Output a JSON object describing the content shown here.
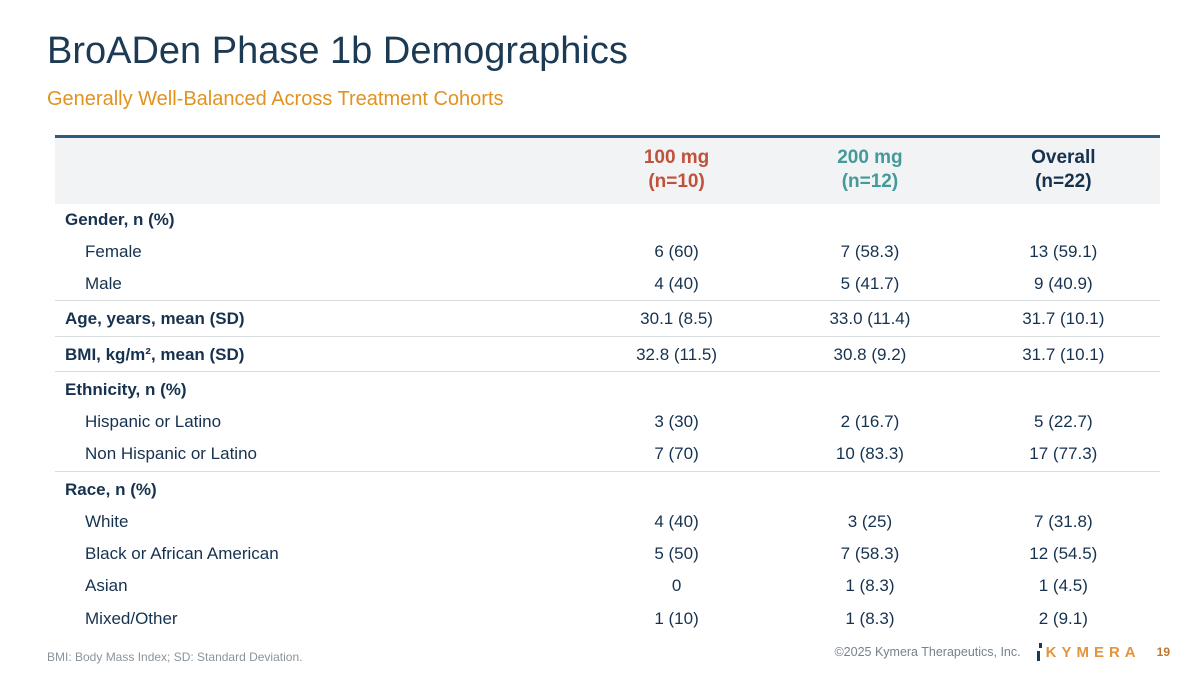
{
  "slide": {
    "title": "BroADen Phase 1b Demographics",
    "subtitle": "Generally Well-Balanced Across Treatment Cohorts"
  },
  "table": {
    "columns": [
      {
        "label": "100 mg",
        "n": "(n=10)"
      },
      {
        "label": "200 mg",
        "n": "(n=12)"
      },
      {
        "label": "Overall",
        "n": "(n=22)"
      }
    ],
    "rows": [
      {
        "label": "Gender, n (%)",
        "type": "section",
        "values": [
          "",
          "",
          ""
        ]
      },
      {
        "label": "Female",
        "type": "sub",
        "values": [
          "6 (60)",
          "7 (58.3)",
          "13 (59.1)"
        ]
      },
      {
        "label": "Male",
        "type": "sub",
        "values": [
          "4 (40)",
          "5 (41.7)",
          "9 (40.9)"
        ]
      },
      {
        "label": "Age, years, mean (SD)",
        "type": "section",
        "values": [
          "30.1 (8.5)",
          "33.0 (11.4)",
          "31.7 (10.1)"
        ]
      },
      {
        "label": "BMI, kg/m², mean (SD)",
        "type": "section",
        "values": [
          "32.8 (11.5)",
          "30.8 (9.2)",
          "31.7 (10.1)"
        ]
      },
      {
        "label": "Ethnicity, n (%)",
        "type": "section",
        "values": [
          "",
          "",
          ""
        ]
      },
      {
        "label": "Hispanic or Latino",
        "type": "sub",
        "values": [
          "3 (30)",
          "2 (16.7)",
          "5 (22.7)"
        ]
      },
      {
        "label": "Non Hispanic or Latino",
        "type": "sub",
        "values": [
          "7 (70)",
          "10 (83.3)",
          "17 (77.3)"
        ]
      },
      {
        "label": "Race, n (%)",
        "type": "section",
        "values": [
          "",
          "",
          ""
        ]
      },
      {
        "label": "White",
        "type": "sub",
        "values": [
          "4 (40)",
          "3 (25)",
          "7 (31.8)"
        ]
      },
      {
        "label": "Black or African American",
        "type": "sub",
        "values": [
          "5 (50)",
          "7 (58.3)",
          "12 (54.5)"
        ]
      },
      {
        "label": "Asian",
        "type": "sub",
        "values": [
          "0",
          "1 (8.3)",
          "1 (4.5)"
        ]
      },
      {
        "label": "Mixed/Other",
        "type": "sub",
        "values": [
          "1 (10)",
          "1 (8.3)",
          "2 (9.1)"
        ]
      }
    ]
  },
  "footer": {
    "footnote": "BMI: Body Mass Index; SD: Standard Deviation.",
    "copyright": "©2025 Kymera Therapeutics, Inc.",
    "logo_text": "KYMERA",
    "page_number": "19"
  },
  "colors": {
    "navy": "#16324f",
    "title_navy": "#1d3a55",
    "orange": "#e2921e",
    "rust": "#c0523c",
    "teal": "#44999b",
    "header_bg": "#f2f3f4",
    "header_border": "#2e5c7d",
    "row_line": "#d9dcdd",
    "footnote_gray": "#8b949c",
    "logo_orange": "#e2953c",
    "page_orange": "#bf7530"
  }
}
